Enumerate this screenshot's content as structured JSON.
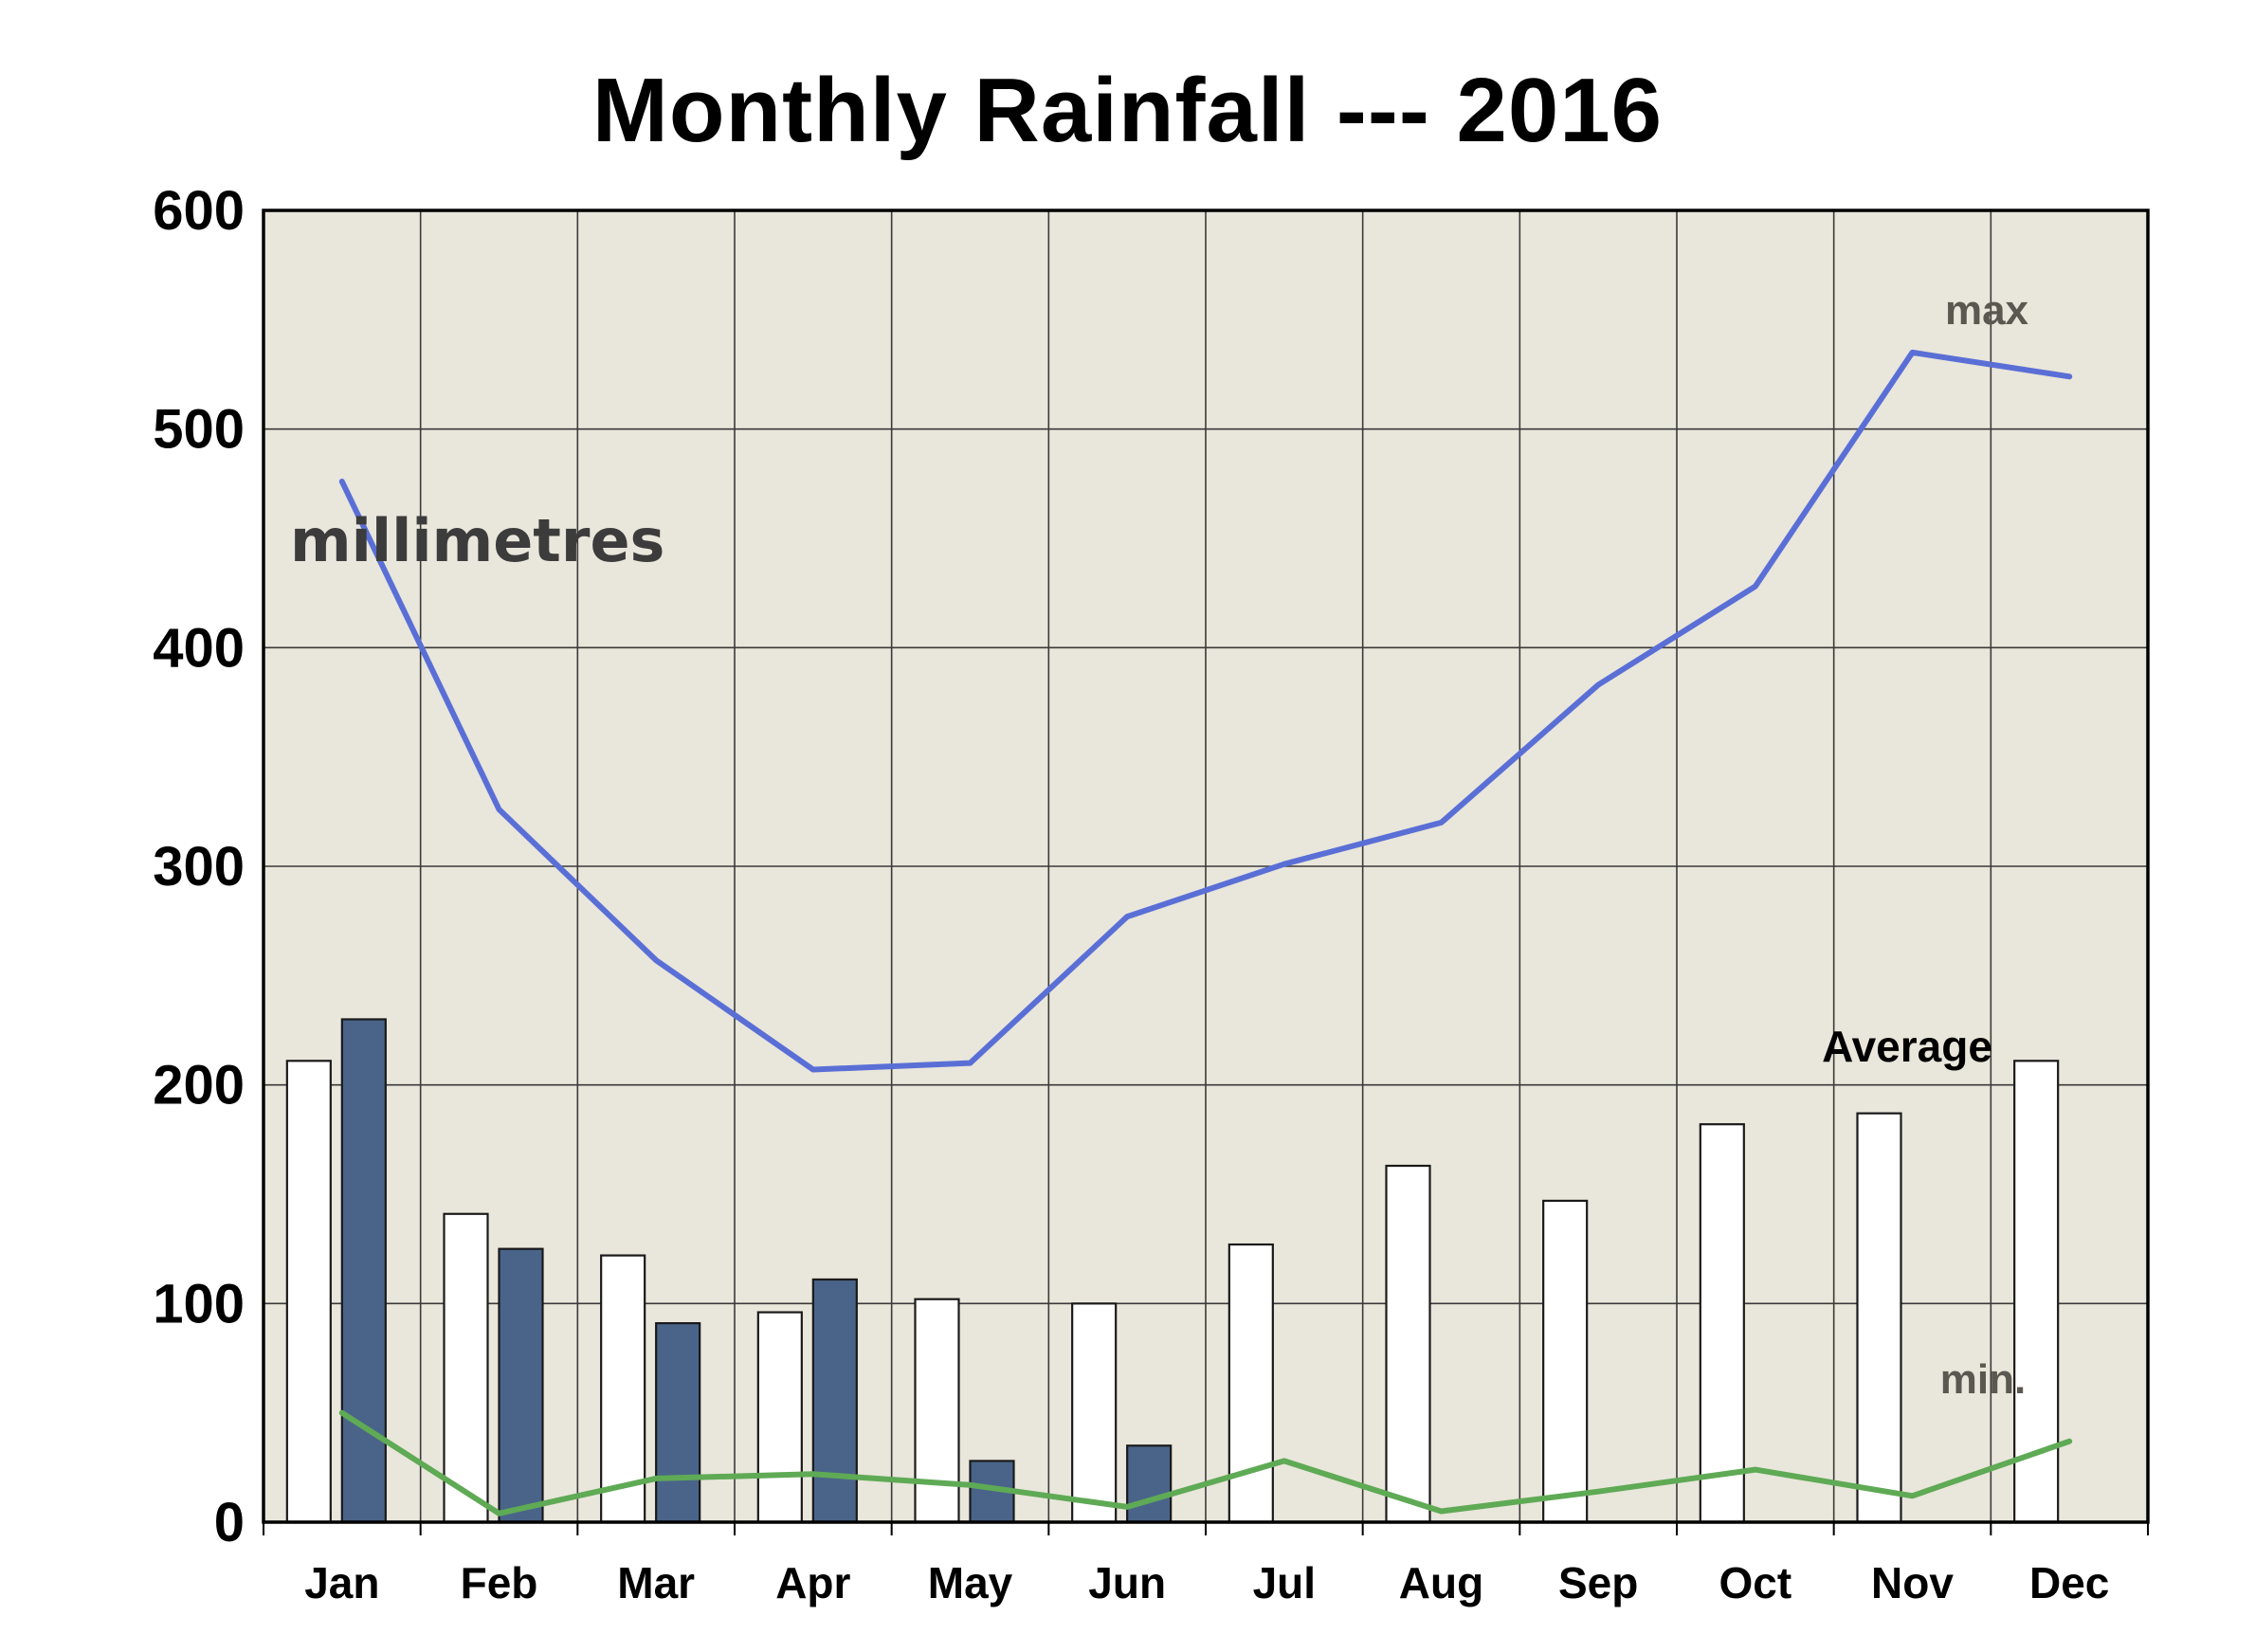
{
  "chart_data": {
    "type": "bar",
    "title": "Monthly Rainfall --- 2016",
    "xlabel": "",
    "ylabel": "",
    "ylim": [
      0,
      600
    ],
    "yticks": [
      "0",
      "100",
      "200",
      "300",
      "400",
      "500",
      "600"
    ],
    "categories": [
      "Jan",
      "Feb",
      "Mar",
      "Apr",
      "May",
      "Jun",
      "Jul",
      "Aug",
      "Sep",
      "Oct",
      "Nov",
      "Dec"
    ],
    "series": [
      {
        "name": "Average",
        "kind": "bar",
        "color": "#ffffff",
        "values": [
          211,
          141,
          122,
          96,
          102,
          100,
          127,
          163,
          147,
          182,
          187,
          211
        ]
      },
      {
        "kind": "bar",
        "color": "#4a6489",
        "values": [
          230,
          125,
          91,
          111,
          28,
          35,
          null,
          null,
          null,
          null,
          null,
          null
        ]
      },
      {
        "name": "max",
        "kind": "line",
        "color": "#5a6fd6",
        "values": [
          476,
          326,
          257,
          207,
          210,
          277,
          301,
          320,
          383,
          428,
          535,
          524
        ]
      },
      {
        "name": "min.",
        "kind": "line",
        "color": "#5faa55",
        "values": [
          50,
          4,
          20,
          22,
          17,
          7,
          28,
          5,
          14,
          24,
          12,
          37
        ]
      }
    ],
    "annotations": {
      "unit": "millimetres",
      "max_label": "max",
      "min_label": "min.",
      "average_label": "Average"
    },
    "grid": true,
    "plot_background": "#e9e6db"
  }
}
